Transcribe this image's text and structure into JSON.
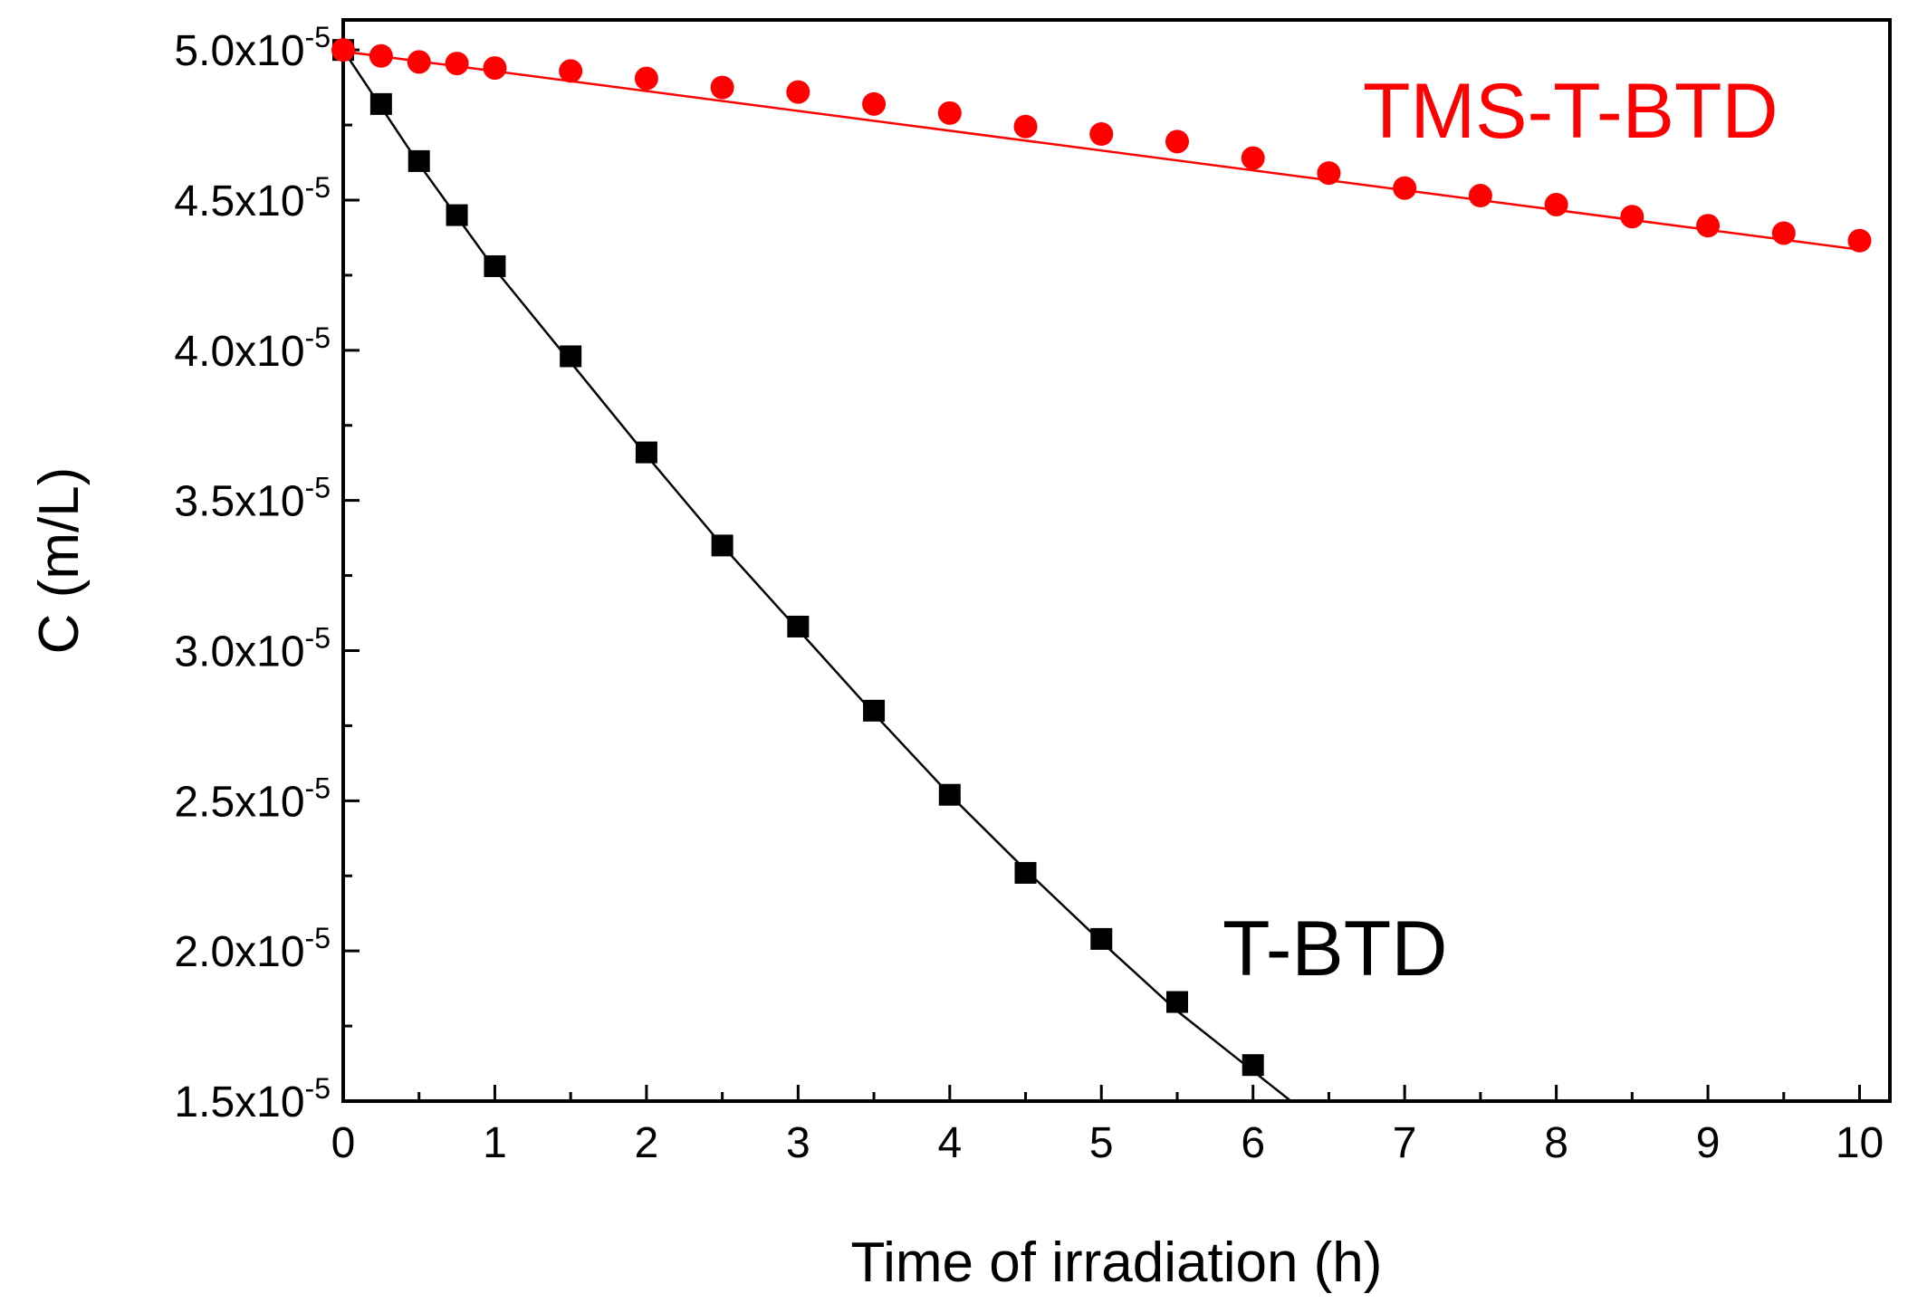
{
  "chart_data": {
    "type": "scatter",
    "title": "",
    "xlabel": "Time of irradiation (h)",
    "ylabel": "C (m/L)",
    "xlim": [
      0,
      10.2
    ],
    "ylim": [
      1.5e-05,
      5.1e-05
    ],
    "grid": false,
    "legend": "none",
    "x_ticks": [
      {
        "value": 0,
        "label": "0"
      },
      {
        "value": 1,
        "label": "1"
      },
      {
        "value": 2,
        "label": "2"
      },
      {
        "value": 3,
        "label": "3"
      },
      {
        "value": 4,
        "label": "4"
      },
      {
        "value": 5,
        "label": "5"
      },
      {
        "value": 6,
        "label": "6"
      },
      {
        "value": 7,
        "label": "7"
      },
      {
        "value": 8,
        "label": "8"
      },
      {
        "value": 9,
        "label": "9"
      },
      {
        "value": 10,
        "label": "10"
      }
    ],
    "y_ticks": [
      {
        "value": 1.5e-05,
        "mantissa": "1.5x10",
        "exponent": "-5"
      },
      {
        "value": 2e-05,
        "mantissa": "2.0x10",
        "exponent": "-5"
      },
      {
        "value": 2.5e-05,
        "mantissa": "2.5x10",
        "exponent": "-5"
      },
      {
        "value": 3e-05,
        "mantissa": "3.0x10",
        "exponent": "-5"
      },
      {
        "value": 3.5e-05,
        "mantissa": "3.5x10",
        "exponent": "-5"
      },
      {
        "value": 4e-05,
        "mantissa": "4.0x10",
        "exponent": "-5"
      },
      {
        "value": 4.5e-05,
        "mantissa": "4.5x10",
        "exponent": "-5"
      },
      {
        "value": 5e-05,
        "mantissa": "5.0x10",
        "exponent": "-5"
      }
    ],
    "series": [
      {
        "name": "T-BTD",
        "color": "#000000",
        "marker": "square",
        "x": [
          0,
          0.25,
          0.5,
          0.75,
          1,
          1.5,
          2,
          2.5,
          3,
          3.5,
          4,
          4.5,
          5,
          5.5,
          6
        ],
        "y": [
          5e-05,
          4.82e-05,
          4.63e-05,
          4.45e-05,
          4.28e-05,
          3.98e-05,
          3.66e-05,
          3.35e-05,
          3.08e-05,
          2.8e-05,
          2.52e-05,
          2.26e-05,
          2.04e-05,
          1.83e-05,
          1.62e-05
        ],
        "fit": {
          "x": [
            0,
            0.5,
            1,
            1.5,
            2,
            2.5,
            3,
            3.5,
            4,
            4.5,
            5,
            5.5,
            6,
            6.25
          ],
          "y": [
            5e-05,
            4.62e-05,
            4.27e-05,
            3.96e-05,
            3.65e-05,
            3.35e-05,
            3.07e-05,
            2.79e-05,
            2.52e-05,
            2.27e-05,
            2.03e-05,
            1.8e-05,
            1.6e-05,
            1.5e-05
          ]
        }
      },
      {
        "name": "TMS-T-BTD",
        "color": "#ff0000",
        "marker": "circle",
        "x": [
          0,
          0.25,
          0.5,
          0.75,
          1,
          1.5,
          2,
          2.5,
          3,
          3.5,
          4,
          4.5,
          5,
          5.5,
          6,
          6.5,
          7,
          7.5,
          8,
          8.5,
          9,
          9.5,
          10
        ],
        "y": [
          5e-05,
          4.98e-05,
          4.96e-05,
          4.955e-05,
          4.94e-05,
          4.93e-05,
          4.905e-05,
          4.875e-05,
          4.86e-05,
          4.82e-05,
          4.79e-05,
          4.745e-05,
          4.72e-05,
          4.695e-05,
          4.64e-05,
          4.59e-05,
          4.54e-05,
          4.515e-05,
          4.485e-05,
          4.445e-05,
          4.415e-05,
          4.39e-05,
          4.365e-05
        ],
        "fit": {
          "x": [
            0,
            10
          ],
          "y": [
            4.995e-05,
            4.335e-05
          ]
        }
      }
    ],
    "annotations": [
      {
        "text": "TMS-T-BTD",
        "color": "#ff0000"
      },
      {
        "text": "T-BTD",
        "color": "#000000"
      }
    ]
  }
}
